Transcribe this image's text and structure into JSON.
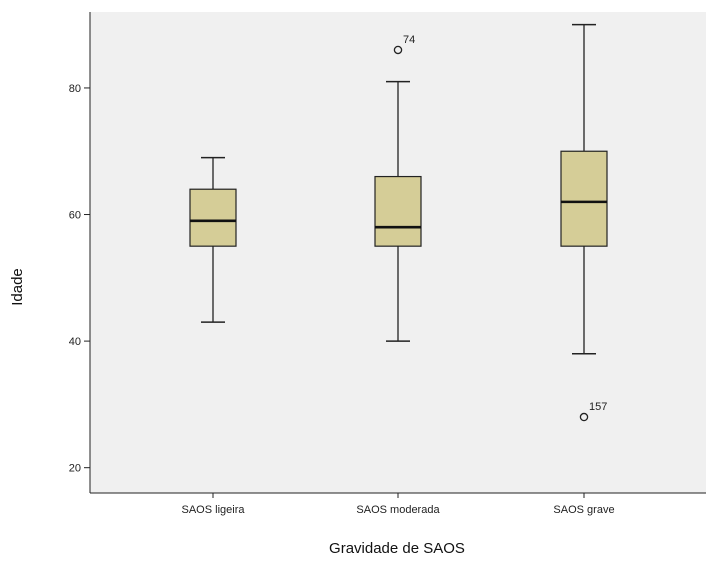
{
  "chart_data": {
    "type": "boxplot",
    "xlabel": "Gravidade de SAOS",
    "ylabel": "Idade",
    "ylim": [
      16,
      92
    ],
    "yticks": [
      20,
      40,
      60,
      80
    ],
    "grid": false,
    "categories": [
      "SAOS ligeira",
      "SAOS moderada",
      "SAOS grave"
    ],
    "boxes": [
      {
        "category": "SAOS ligeira",
        "whisker_low": 43,
        "q1": 55,
        "median": 59,
        "q3": 64,
        "whisker_high": 69,
        "outliers": []
      },
      {
        "category": "SAOS moderada",
        "whisker_low": 40,
        "q1": 55,
        "median": 58,
        "q3": 66,
        "whisker_high": 81,
        "outliers": [
          {
            "value": 86,
            "label": "74"
          }
        ]
      },
      {
        "category": "SAOS grave",
        "whisker_low": 38,
        "q1": 55,
        "median": 62,
        "q3": 70,
        "whisker_high": 90,
        "outliers": [
          {
            "value": 28,
            "label": "157"
          }
        ]
      }
    ],
    "colors": {
      "box_fill": "#d5cd97",
      "plot_background": "#f0f0f0",
      "line": "#222222"
    }
  }
}
